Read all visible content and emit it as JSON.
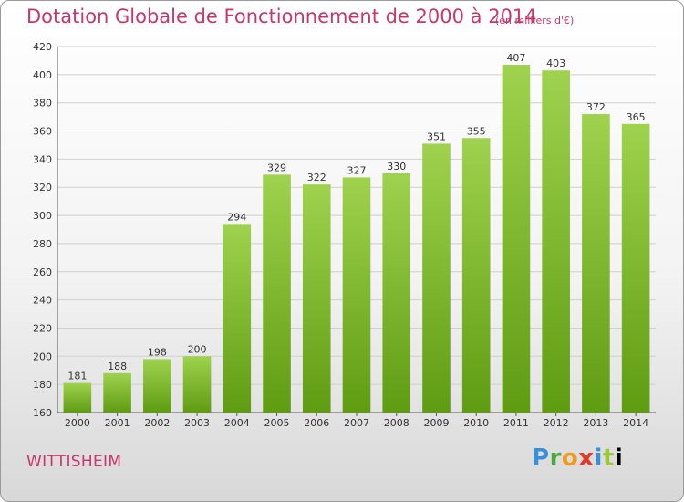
{
  "header": {
    "title": "Dotation Globale de Fonctionnement de 2000 à 2014",
    "unit": "(en milliers d'€)"
  },
  "footer": {
    "city": "WITTISHEIM",
    "logo": "Proxiti"
  },
  "colors": {
    "bar_top": "#9fd24e",
    "bar_bottom": "#5f9c12",
    "grid": "#cfcfcf",
    "title": "#c8366a"
  },
  "chart_data": {
    "type": "bar",
    "title": "Dotation Globale de Fonctionnement de 2000 à 2014",
    "xlabel": "",
    "ylabel": "",
    "categories": [
      "2000",
      "2001",
      "2002",
      "2003",
      "2004",
      "2005",
      "2006",
      "2007",
      "2008",
      "2009",
      "2010",
      "2011",
      "2012",
      "2013",
      "2014"
    ],
    "values": [
      181,
      188,
      198,
      200,
      294,
      329,
      322,
      327,
      330,
      351,
      355,
      407,
      403,
      372,
      365
    ],
    "ylim": [
      160,
      420
    ],
    "yticks": [
      160,
      180,
      200,
      220,
      240,
      260,
      280,
      300,
      320,
      340,
      360,
      380,
      400,
      420
    ],
    "grid": true,
    "legend": "none"
  }
}
